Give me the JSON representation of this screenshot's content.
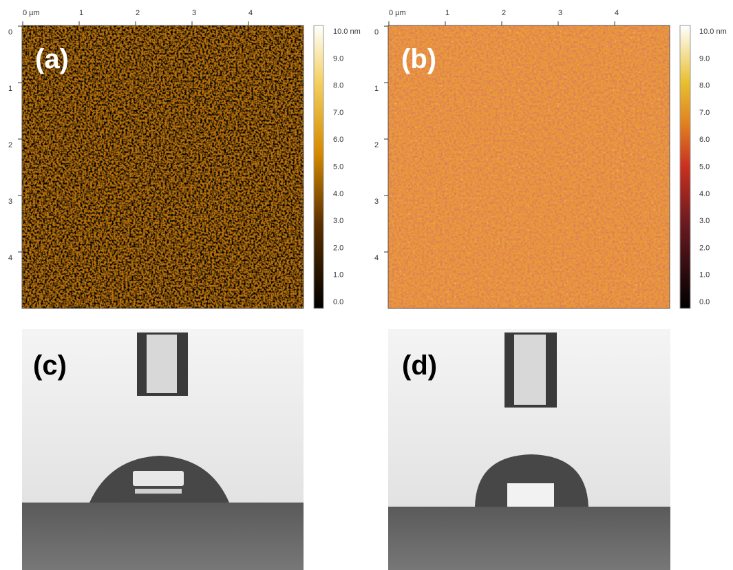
{
  "afm_panels": [
    {
      "label": "(a)",
      "x_ticks": [
        "0 µm",
        "1",
        "2",
        "3",
        "4"
      ],
      "y_ticks": [
        "0",
        "1",
        "2",
        "3",
        "4"
      ],
      "colorbar_ticks": [
        "10.0 nm",
        "9.0",
        "8.0",
        "7.0",
        "6.0",
        "5.0",
        "4.0",
        "3.0",
        "2.0",
        "1.0",
        "0.0"
      ]
    },
    {
      "label": "(b)",
      "x_ticks": [
        "0 µm",
        "1",
        "2",
        "3",
        "4"
      ],
      "y_ticks": [
        "0",
        "1",
        "2",
        "3",
        "4"
      ],
      "colorbar_ticks": [
        "10.0 nm",
        "9.0",
        "8.0",
        "7.0",
        "6.0",
        "5.0",
        "4.0",
        "3.0",
        "2.0",
        "1.0",
        "0.0"
      ]
    }
  ],
  "drop_panels": [
    {
      "label": "(c)"
    },
    {
      "label": "(d)"
    }
  ]
}
